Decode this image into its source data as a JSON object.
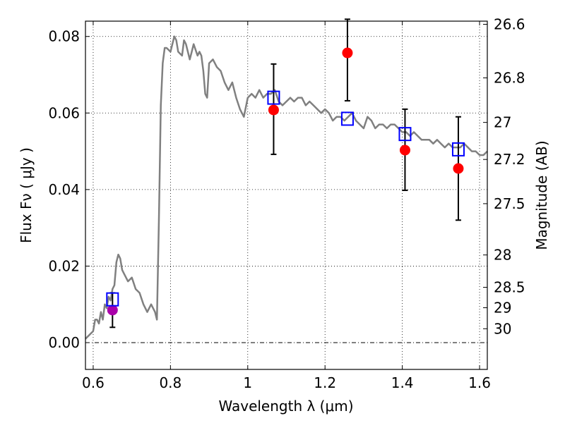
{
  "chart_data": {
    "type": "scatter",
    "xlabel": "Wavelength  λ (μm)",
    "ylabel": "Flux  Fν  ( μJy )",
    "ylabel_right": "Magnitude (AB)",
    "xlim": [
      0.58,
      1.62
    ],
    "ylim": [
      -0.007,
      0.084
    ],
    "grid": true,
    "x_ticks": [
      {
        "value": 0.6,
        "label": "0.6"
      },
      {
        "value": 0.8,
        "label": "0.8"
      },
      {
        "value": 1.0,
        "label": "1"
      },
      {
        "value": 1.2,
        "label": "1.2"
      },
      {
        "value": 1.4,
        "label": "1.4"
      },
      {
        "value": 1.6,
        "label": "1.6"
      }
    ],
    "y_ticks": [
      {
        "value": 0.0,
        "label": "0.00"
      },
      {
        "value": 0.02,
        "label": "0.02"
      },
      {
        "value": 0.04,
        "label": "0.04"
      },
      {
        "value": 0.06,
        "label": "0.06"
      },
      {
        "value": 0.08,
        "label": "0.08"
      }
    ],
    "right_ticks": [
      {
        "value": 26.6,
        "label": "26.6"
      },
      {
        "value": 26.8,
        "label": "26.8"
      },
      {
        "value": 27.0,
        "label": "27"
      },
      {
        "value": 27.2,
        "label": "27.2"
      },
      {
        "value": 27.5,
        "label": "27.5"
      },
      {
        "value": 28.0,
        "label": "28"
      },
      {
        "value": 28.5,
        "label": "28.5"
      },
      {
        "value": 29.0,
        "label": "29"
      },
      {
        "value": 30.0,
        "label": "30"
      }
    ],
    "model_spectrum": {
      "color": "#808080",
      "x": [
        0.58,
        0.59,
        0.6,
        0.605,
        0.61,
        0.615,
        0.62,
        0.625,
        0.63,
        0.635,
        0.64,
        0.645,
        0.65,
        0.655,
        0.66,
        0.665,
        0.67,
        0.675,
        0.68,
        0.69,
        0.7,
        0.71,
        0.72,
        0.73,
        0.74,
        0.75,
        0.76,
        0.765,
        0.77,
        0.775,
        0.78,
        0.785,
        0.79,
        0.8,
        0.81,
        0.815,
        0.82,
        0.83,
        0.835,
        0.84,
        0.85,
        0.855,
        0.86,
        0.87,
        0.875,
        0.88,
        0.885,
        0.89,
        0.895,
        0.9,
        0.91,
        0.92,
        0.93,
        0.94,
        0.95,
        0.96,
        0.97,
        0.98,
        0.99,
        1.0,
        1.01,
        1.02,
        1.03,
        1.04,
        1.05,
        1.06,
        1.07,
        1.08,
        1.09,
        1.1,
        1.11,
        1.12,
        1.13,
        1.14,
        1.15,
        1.16,
        1.17,
        1.18,
        1.19,
        1.2,
        1.21,
        1.22,
        1.23,
        1.24,
        1.25,
        1.26,
        1.27,
        1.28,
        1.29,
        1.3,
        1.31,
        1.32,
        1.33,
        1.34,
        1.35,
        1.36,
        1.37,
        1.38,
        1.39,
        1.4,
        1.41,
        1.42,
        1.43,
        1.44,
        1.45,
        1.46,
        1.47,
        1.48,
        1.49,
        1.5,
        1.51,
        1.52,
        1.53,
        1.54,
        1.55,
        1.56,
        1.57,
        1.58,
        1.59,
        1.6,
        1.61,
        1.62
      ],
      "y": [
        0.001,
        0.002,
        0.003,
        0.006,
        0.006,
        0.005,
        0.008,
        0.006,
        0.01,
        0.009,
        0.012,
        0.011,
        0.014,
        0.015,
        0.021,
        0.023,
        0.022,
        0.019,
        0.018,
        0.016,
        0.017,
        0.014,
        0.013,
        0.01,
        0.008,
        0.01,
        0.008,
        0.006,
        0.032,
        0.062,
        0.073,
        0.077,
        0.077,
        0.076,
        0.08,
        0.079,
        0.076,
        0.075,
        0.079,
        0.078,
        0.074,
        0.076,
        0.078,
        0.075,
        0.076,
        0.075,
        0.071,
        0.065,
        0.064,
        0.073,
        0.074,
        0.072,
        0.071,
        0.068,
        0.066,
        0.068,
        0.064,
        0.061,
        0.059,
        0.064,
        0.065,
        0.064,
        0.066,
        0.064,
        0.065,
        0.065,
        0.066,
        0.063,
        0.062,
        0.063,
        0.064,
        0.063,
        0.064,
        0.064,
        0.062,
        0.063,
        0.062,
        0.061,
        0.06,
        0.061,
        0.06,
        0.058,
        0.059,
        0.059,
        0.058,
        0.059,
        0.06,
        0.058,
        0.057,
        0.056,
        0.059,
        0.058,
        0.056,
        0.057,
        0.057,
        0.056,
        0.057,
        0.057,
        0.056,
        0.055,
        0.055,
        0.054,
        0.055,
        0.054,
        0.053,
        0.053,
        0.053,
        0.052,
        0.053,
        0.052,
        0.051,
        0.052,
        0.051,
        0.051,
        0.051,
        0.052,
        0.051,
        0.05,
        0.05,
        0.049,
        0.049,
        0.05
      ]
    },
    "photometry": {
      "color": "#ff0000",
      "points": [
        {
          "x": 0.65,
          "y": 0.0085,
          "err_low": 0.004,
          "err_high": 0.013,
          "color": "#aa00aa"
        },
        {
          "x": 1.067,
          "y": 0.0608,
          "err_low": 0.0492,
          "err_high": 0.0728
        },
        {
          "x": 1.258,
          "y": 0.0757,
          "err_low": 0.0632,
          "err_high": 0.0845
        },
        {
          "x": 1.407,
          "y": 0.0503,
          "err_low": 0.0398,
          "err_high": 0.061
        },
        {
          "x": 1.545,
          "y": 0.0455,
          "err_low": 0.032,
          "err_high": 0.059
        }
      ]
    },
    "model_photometry": {
      "color": "#0000ff",
      "points": [
        {
          "x": 0.65,
          "y": 0.0113
        },
        {
          "x": 1.067,
          "y": 0.064
        },
        {
          "x": 1.258,
          "y": 0.0585
        },
        {
          "x": 1.407,
          "y": 0.0545
        },
        {
          "x": 1.545,
          "y": 0.0505
        }
      ]
    }
  }
}
